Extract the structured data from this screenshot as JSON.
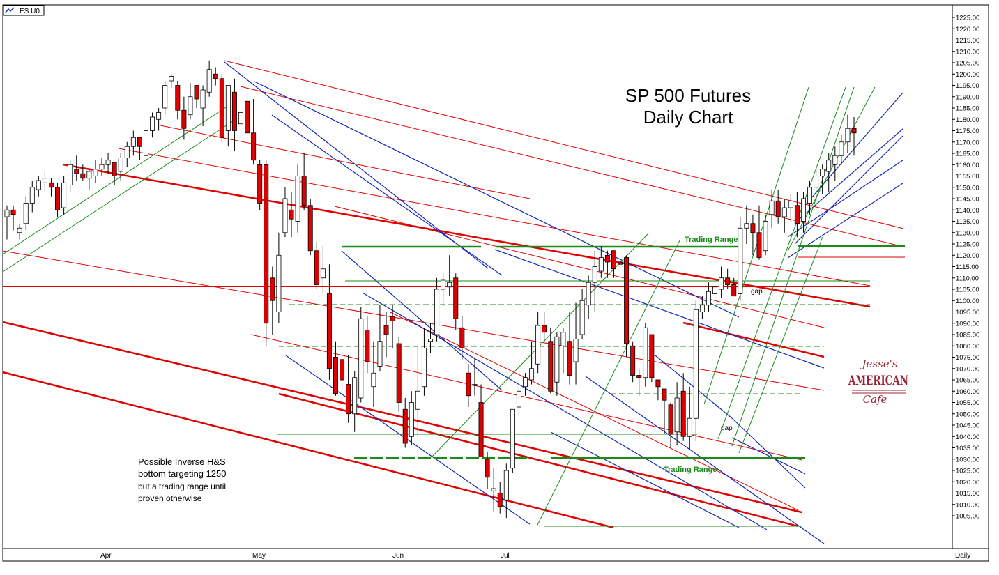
{
  "symbol": "ES U0",
  "period_label": "Daily",
  "title_lines": [
    "SP 500 Futures",
    "Daily Chart"
  ],
  "annotations": {
    "hs_note_lines": [
      "Possible Inverse H&S",
      "bottom targeting 1250",
      "but a trading range until",
      "proven otherwise"
    ],
    "trading_range_top": "Trading Range",
    "trading_range_bottom": "Trading Range",
    "gap_labels": [
      "gap",
      "gap"
    ]
  },
  "logo": {
    "line1": "Jesse's",
    "line2": "AMERICAN",
    "line3": "Cafe"
  },
  "colors": {
    "up_fill": "#ffffff",
    "down_fill": "#e00000",
    "red_line": "#e00000",
    "blue_line": "#1428b4",
    "green_line": "#1a8a1a",
    "logo": "#9b2335"
  },
  "chart_data": {
    "type": "candlestick",
    "x_months": [
      "Apr",
      "May",
      "Jun",
      "Jul"
    ],
    "ylim": [
      1000,
      1227
    ],
    "y_ticks": [
      "1225.00",
      "1220.00",
      "1215.00",
      "1210.00",
      "1205.00",
      "1200.00",
      "1195.00",
      "1190.00",
      "1185.00",
      "1180.00",
      "1175.00",
      "1170.00",
      "1165.00",
      "1160.00",
      "1155.00",
      "1150.00",
      "1145.00",
      "1140.00",
      "1135.00",
      "1130.00",
      "1125.00",
      "1120.00",
      "1115.00",
      "1110.00",
      "1105.00",
      "1100.00",
      "1095.00",
      "1090.00",
      "1085.00",
      "1080.00",
      "1075.00",
      "1070.00",
      "1065.00",
      "1060.00",
      "1055.00",
      "1050.00",
      "1045.00",
      "1040.00",
      "1035.00",
      "1030.00",
      "1025.00",
      "1020.00",
      "1015.00",
      "1010.00",
      "1005.00"
    ],
    "bars": [
      [
        1137,
        1142,
        1127,
        1140
      ],
      [
        1140,
        1142,
        1131,
        1138
      ],
      [
        1130,
        1134,
        1127,
        1132
      ],
      [
        1134,
        1146,
        1131,
        1143
      ],
      [
        1143,
        1153,
        1139,
        1150
      ],
      [
        1149,
        1155,
        1146,
        1153
      ],
      [
        1152,
        1157,
        1148,
        1154
      ],
      [
        1152,
        1154,
        1146,
        1150
      ],
      [
        1150,
        1152,
        1137,
        1140
      ],
      [
        1141,
        1155,
        1138,
        1152
      ],
      [
        1151,
        1162,
        1148,
        1160
      ],
      [
        1158,
        1164,
        1153,
        1156
      ],
      [
        1156,
        1160,
        1153,
        1154
      ],
      [
        1154,
        1158,
        1149,
        1157
      ],
      [
        1155,
        1162,
        1152,
        1158
      ],
      [
        1158,
        1163,
        1155,
        1160
      ],
      [
        1160,
        1165,
        1156,
        1162
      ],
      [
        1161,
        1159,
        1151,
        1155
      ],
      [
        1157,
        1165,
        1153,
        1163
      ],
      [
        1163,
        1170,
        1159,
        1168
      ],
      [
        1168,
        1175,
        1164,
        1172
      ],
      [
        1172,
        1170,
        1162,
        1168
      ],
      [
        1164,
        1177,
        1163,
        1175
      ],
      [
        1175,
        1183,
        1172,
        1181
      ],
      [
        1180,
        1185,
        1175,
        1183
      ],
      [
        1185,
        1197,
        1182,
        1195
      ],
      [
        1197,
        1200,
        1194,
        1199
      ],
      [
        1195,
        1197,
        1180,
        1184
      ],
      [
        1184,
        1190,
        1171,
        1176
      ],
      [
        1182,
        1196,
        1180,
        1190
      ],
      [
        1195,
        1193,
        1185,
        1189
      ],
      [
        1185,
        1195,
        1177,
        1193
      ],
      [
        1192,
        1206,
        1190,
        1202
      ],
      [
        1200,
        1203,
        1195,
        1198
      ],
      [
        1198,
        1200,
        1170,
        1172
      ],
      [
        1175,
        1192,
        1168,
        1195
      ],
      [
        1192,
        1198,
        1166,
        1175
      ],
      [
        1178,
        1195,
        1173,
        1183
      ],
      [
        1188,
        1192,
        1173,
        1174
      ],
      [
        1174,
        1189,
        1160,
        1162
      ],
      [
        1160,
        1162,
        1140,
        1143
      ],
      [
        1160,
        1162,
        1080,
        1090
      ],
      [
        1110,
        1115,
        1085,
        1100
      ],
      [
        1095,
        1130,
        1090,
        1120
      ],
      [
        1130,
        1150,
        1128,
        1145
      ],
      [
        1140,
        1148,
        1128,
        1136
      ],
      [
        1135,
        1160,
        1130,
        1155
      ],
      [
        1155,
        1165,
        1140,
        1142
      ],
      [
        1142,
        1145,
        1120,
        1122
      ],
      [
        1122,
        1126,
        1105,
        1107
      ],
      [
        1110,
        1124,
        1103,
        1114
      ],
      [
        1103,
        1116,
        1065,
        1070
      ],
      [
        1075,
        1082,
        1058,
        1059
      ],
      [
        1074,
        1078,
        1061,
        1065
      ],
      [
        1063,
        1076,
        1046,
        1050
      ],
      [
        1050,
        1069,
        1042,
        1066
      ],
      [
        1057,
        1097,
        1055,
        1092
      ],
      [
        1087,
        1093,
        1068,
        1073
      ],
      [
        1062,
        1082,
        1053,
        1068
      ],
      [
        1071,
        1098,
        1069,
        1082
      ],
      [
        1089,
        1095,
        1075,
        1085
      ],
      [
        1093,
        1098,
        1079,
        1091
      ],
      [
        1081,
        1084,
        1051,
        1055
      ],
      [
        1052,
        1057,
        1035,
        1037
      ],
      [
        1040,
        1060,
        1036,
        1055
      ],
      [
        1052,
        1080,
        1040,
        1060
      ],
      [
        1062,
        1088,
        1058,
        1079
      ],
      [
        1082,
        1090,
        1077,
        1083
      ],
      [
        1085,
        1110,
        1082,
        1105
      ],
      [
        1105,
        1112,
        1097,
        1109
      ],
      [
        1106,
        1120,
        1102,
        1108
      ],
      [
        1110,
        1112,
        1087,
        1092
      ],
      [
        1088,
        1093,
        1074,
        1079
      ],
      [
        1068,
        1072,
        1053,
        1058
      ],
      [
        1063,
        1075,
        1058,
        1063
      ],
      [
        1055,
        1063,
        1031,
        1031
      ],
      [
        1030,
        1033,
        1017,
        1022
      ],
      [
        1016,
        1026,
        1007,
        1017
      ],
      [
        1015,
        1020,
        1006,
        1009
      ],
      [
        1012,
        1028,
        1004,
        1025
      ],
      [
        1026,
        1050,
        1024,
        1052
      ],
      [
        1053,
        1062,
        1049,
        1060
      ],
      [
        1062,
        1068,
        1058,
        1066
      ],
      [
        1065,
        1082,
        1063,
        1070
      ],
      [
        1072,
        1095,
        1068,
        1089
      ],
      [
        1089,
        1095,
        1082,
        1086
      ],
      [
        1082,
        1088,
        1059,
        1060
      ],
      [
        1064,
        1086,
        1058,
        1084
      ],
      [
        1080,
        1088,
        1068,
        1086
      ],
      [
        1082,
        1095,
        1063,
        1067
      ],
      [
        1073,
        1099,
        1063,
        1083
      ],
      [
        1085,
        1105,
        1083,
        1100
      ],
      [
        1098,
        1111,
        1092,
        1108
      ],
      [
        1108,
        1122,
        1095,
        1115
      ],
      [
        1113,
        1124,
        1110,
        1119
      ],
      [
        1120,
        1122,
        1110,
        1117
      ],
      [
        1122,
        1122,
        1110,
        1114
      ],
      [
        1117,
        1121,
        1102,
        1116
      ],
      [
        1119,
        1120,
        1075,
        1081
      ],
      [
        1080,
        1082,
        1064,
        1067
      ],
      [
        1067,
        1070,
        1058,
        1066
      ],
      [
        1066,
        1090,
        1062,
        1088
      ],
      [
        1085,
        1084,
        1064,
        1066
      ],
      [
        1065,
        1065,
        1056,
        1062
      ],
      [
        1061,
        1061,
        1041,
        1056
      ],
      [
        1054,
        1055,
        1035,
        1041
      ],
      [
        1042,
        1064,
        1036,
        1057
      ],
      [
        1060,
        1068,
        1038,
        1040
      ],
      [
        1040,
        1062,
        1034,
        1048
      ],
      [
        1048,
        1100,
        1038,
        1096
      ],
      [
        1095,
        1102,
        1092,
        1098
      ],
      [
        1098,
        1108,
        1095,
        1104
      ],
      [
        1103,
        1110,
        1100,
        1106
      ],
      [
        1105,
        1115,
        1101,
        1110
      ],
      [
        1110,
        1114,
        1105,
        1107
      ],
      [
        1107,
        1110,
        1104,
        1102
      ],
      [
        1103,
        1137,
        1100,
        1132
      ],
      [
        1132,
        1142,
        1125,
        1134
      ],
      [
        1134,
        1138,
        1120,
        1130
      ],
      [
        1130,
        1142,
        1118,
        1119
      ],
      [
        1122,
        1138,
        1120,
        1135
      ],
      [
        1138,
        1149,
        1132,
        1144
      ],
      [
        1144,
        1149,
        1134,
        1137
      ],
      [
        1137,
        1145,
        1130,
        1141
      ],
      [
        1141,
        1147,
        1135,
        1144
      ],
      [
        1142,
        1148,
        1128,
        1134
      ],
      [
        1135,
        1148,
        1130,
        1145
      ],
      [
        1143,
        1153,
        1138,
        1150
      ],
      [
        1150,
        1158,
        1142,
        1155
      ],
      [
        1155,
        1160,
        1147,
        1158
      ],
      [
        1157,
        1165,
        1148,
        1162
      ],
      [
        1160,
        1168,
        1153,
        1164
      ],
      [
        1164,
        1173,
        1160,
        1170
      ],
      [
        1170,
        1182,
        1165,
        1176
      ],
      [
        1176,
        1181,
        1164,
        1174
      ]
    ]
  }
}
